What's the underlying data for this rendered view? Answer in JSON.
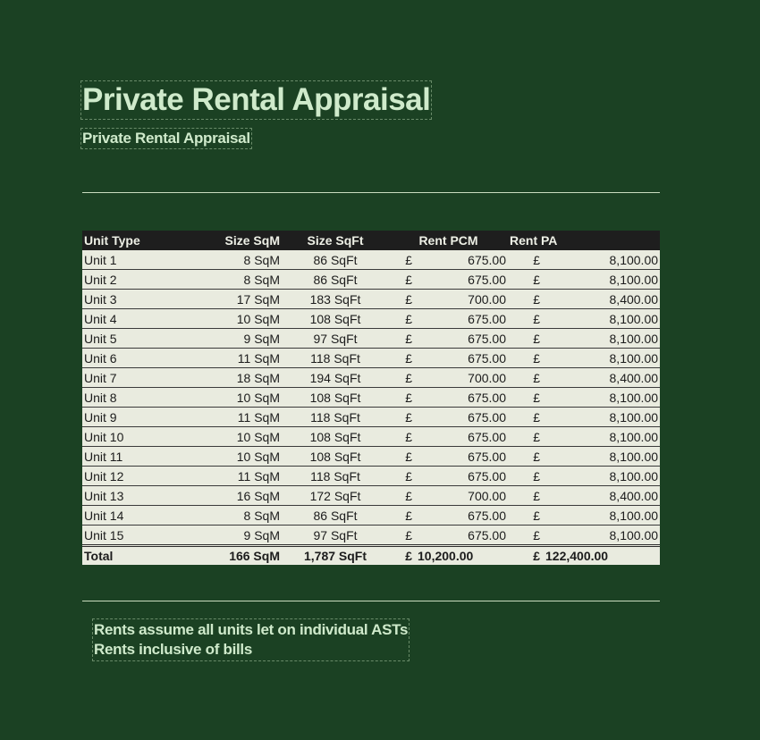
{
  "title": "Private Rental Appraisal",
  "subtitle": "Private Rental Appraisal",
  "colors": {
    "background": "#1b4123",
    "header_bg": "#1e1e1e",
    "row_bg": "#e9ebdf",
    "title_text": "#cfeacb"
  },
  "table": {
    "headers": {
      "unit_type": "Unit Type",
      "size_sqm": "Size SqM",
      "size_sqft": "Size SqFt",
      "rent_pcm": "Rent PCM",
      "rent_pa": "Rent PA"
    },
    "currency_symbol": "£",
    "rows": [
      {
        "unit": "Unit 1",
        "sqm": "8 SqM",
        "sqft": "86 SqFt",
        "pcm": "675.00",
        "pa": "8,100.00"
      },
      {
        "unit": "Unit 2",
        "sqm": "8 SqM",
        "sqft": "86 SqFt",
        "pcm": "675.00",
        "pa": "8,100.00"
      },
      {
        "unit": "Unit 3",
        "sqm": "17 SqM",
        "sqft": "183 SqFt",
        "pcm": "700.00",
        "pa": "8,400.00"
      },
      {
        "unit": "Unit 4",
        "sqm": "10 SqM",
        "sqft": "108 SqFt",
        "pcm": "675.00",
        "pa": "8,100.00"
      },
      {
        "unit": "Unit 5",
        "sqm": "9 SqM",
        "sqft": "97 SqFt",
        "pcm": "675.00",
        "pa": "8,100.00"
      },
      {
        "unit": "Unit 6",
        "sqm": "11 SqM",
        "sqft": "118 SqFt",
        "pcm": "675.00",
        "pa": "8,100.00"
      },
      {
        "unit": "Unit 7",
        "sqm": "18 SqM",
        "sqft": "194 SqFt",
        "pcm": "700.00",
        "pa": "8,400.00"
      },
      {
        "unit": "Unit 8",
        "sqm": "10 SqM",
        "sqft": "108 SqFt",
        "pcm": "675.00",
        "pa": "8,100.00"
      },
      {
        "unit": "Unit 9",
        "sqm": "11 SqM",
        "sqft": "118 SqFt",
        "pcm": "675.00",
        "pa": "8,100.00"
      },
      {
        "unit": "Unit 10",
        "sqm": "10 SqM",
        "sqft": "108 SqFt",
        "pcm": "675.00",
        "pa": "8,100.00"
      },
      {
        "unit": "Unit 11",
        "sqm": "10 SqM",
        "sqft": "108 SqFt",
        "pcm": "675.00",
        "pa": "8,100.00"
      },
      {
        "unit": "Unit 12",
        "sqm": "11 SqM",
        "sqft": "118 SqFt",
        "pcm": "675.00",
        "pa": "8,100.00"
      },
      {
        "unit": "Unit 13",
        "sqm": "16 SqM",
        "sqft": "172 SqFt",
        "pcm": "700.00",
        "pa": "8,400.00"
      },
      {
        "unit": "Unit 14",
        "sqm": "8 SqM",
        "sqft": "86 SqFt",
        "pcm": "675.00",
        "pa": "8,100.00"
      },
      {
        "unit": "Unit 15",
        "sqm": "9 SqM",
        "sqft": "97 SqFt",
        "pcm": "675.00",
        "pa": "8,100.00"
      }
    ],
    "total": {
      "label": "Total",
      "sqm": "166 SqM",
      "sqft": "1,787 SqFt",
      "pcm": "10,200.00",
      "pa": "122,400.00"
    }
  },
  "notes": [
    "Rents assume all units let on individual ASTs",
    "Rents inclusive of bills"
  ]
}
